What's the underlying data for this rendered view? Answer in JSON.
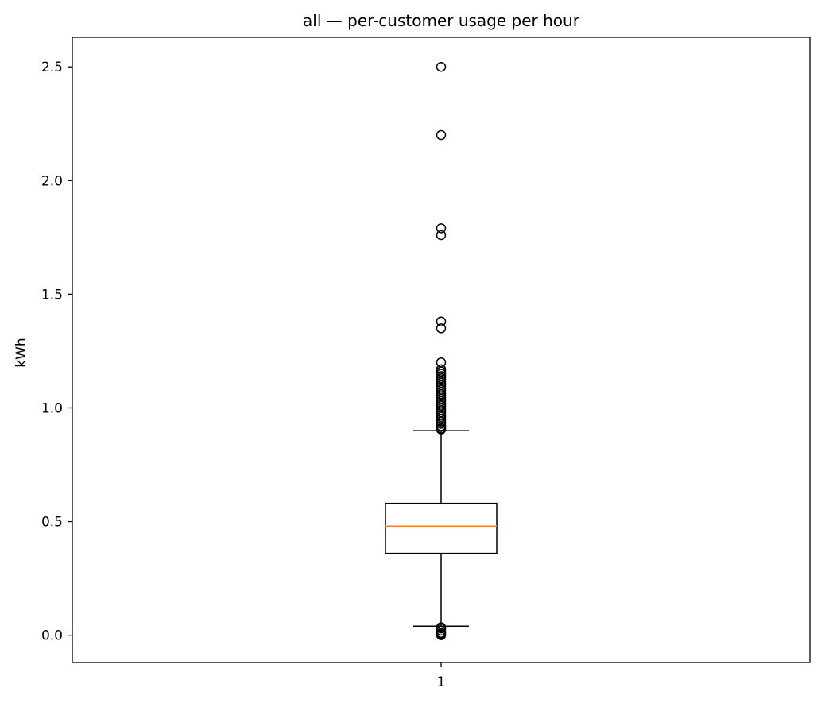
{
  "chart_data": {
    "type": "boxplot",
    "title": "all — per-customer usage per hour",
    "xlabel": "",
    "ylabel": "kWh",
    "categories": [
      "1"
    ],
    "ylim": [
      -0.12,
      2.63
    ],
    "yticks": [
      0.0,
      0.5,
      1.0,
      1.5,
      2.0,
      2.5
    ],
    "ytick_labels": [
      "0.0",
      "0.5",
      "1.0",
      "1.5",
      "2.0",
      "2.5"
    ],
    "grid": false,
    "boxes": [
      {
        "category": "1",
        "whisker_low": 0.04,
        "q1": 0.36,
        "median": 0.48,
        "q3": 0.58,
        "whisker_high": 0.9,
        "outliers": [
          0.0,
          0.005,
          0.01,
          0.02,
          0.03,
          0.035,
          0.905,
          0.91,
          0.92,
          0.93,
          0.94,
          0.95,
          0.96,
          0.97,
          0.98,
          0.99,
          1.0,
          1.01,
          1.02,
          1.03,
          1.04,
          1.05,
          1.06,
          1.07,
          1.08,
          1.09,
          1.1,
          1.11,
          1.12,
          1.13,
          1.14,
          1.15,
          1.16,
          1.17,
          1.2,
          1.35,
          1.38,
          1.76,
          1.79,
          2.2,
          2.5
        ]
      }
    ],
    "colors": {
      "box": "#000000",
      "median": "#ff7f0e",
      "outlier_edge": "#000000"
    }
  }
}
